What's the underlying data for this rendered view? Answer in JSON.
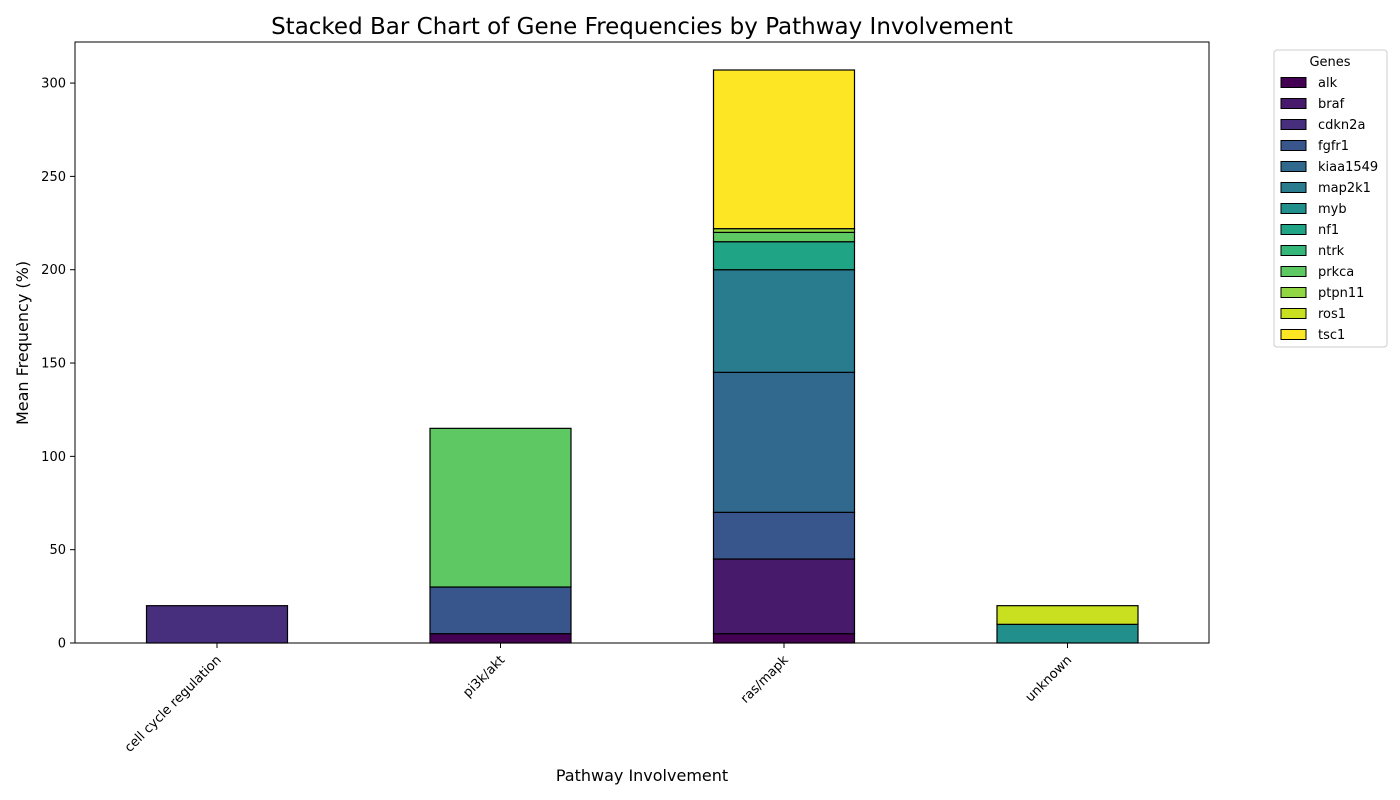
{
  "chart_data": {
    "type": "bar",
    "stacked": true,
    "title": "Stacked Bar Chart of Gene Frequencies by Pathway Involvement",
    "xlabel": "Pathway Involvement",
    "ylabel": "Mean Frequency (%)",
    "ylim": [
      0,
      322
    ],
    "yticks": [
      0,
      50,
      100,
      150,
      200,
      250,
      300
    ],
    "grid": false,
    "legend_title": "Genes",
    "legend_placement": "outside-top-right",
    "categories": [
      "cell cycle regulation",
      "pi3k/akt",
      "ras/mapk",
      "unknown"
    ],
    "series": [
      {
        "name": "alk",
        "color": "#440154",
        "values": [
          0,
          5,
          5,
          0
        ]
      },
      {
        "name": "braf",
        "color": "#481a6c",
        "values": [
          0,
          0,
          40,
          0
        ]
      },
      {
        "name": "cdkn2a",
        "color": "#472f7d",
        "values": [
          20,
          0,
          0,
          0
        ]
      },
      {
        "name": "fgfr1",
        "color": "#39568c",
        "values": [
          0,
          25,
          25,
          0
        ]
      },
      {
        "name": "kiaa1549",
        "color": "#31688e",
        "values": [
          0,
          0,
          75,
          0
        ]
      },
      {
        "name": "map2k1",
        "color": "#287c8e",
        "values": [
          0,
          0,
          55,
          0
        ]
      },
      {
        "name": "myb",
        "color": "#21908d",
        "values": [
          0,
          0,
          0,
          10
        ]
      },
      {
        "name": "nf1",
        "color": "#20a486",
        "values": [
          0,
          0,
          15,
          0
        ]
      },
      {
        "name": "ntrk",
        "color": "#35b779",
        "values": [
          0,
          0,
          0,
          0
        ]
      },
      {
        "name": "prkca",
        "color": "#5ec962",
        "values": [
          0,
          85,
          5,
          0
        ]
      },
      {
        "name": "ptpn11",
        "color": "#90d743",
        "values": [
          0,
          0,
          2,
          0
        ]
      },
      {
        "name": "ros1",
        "color": "#c8e020",
        "values": [
          0,
          0,
          0,
          10
        ]
      },
      {
        "name": "tsc1",
        "color": "#fde725",
        "values": [
          0,
          0,
          85,
          0
        ]
      }
    ]
  }
}
